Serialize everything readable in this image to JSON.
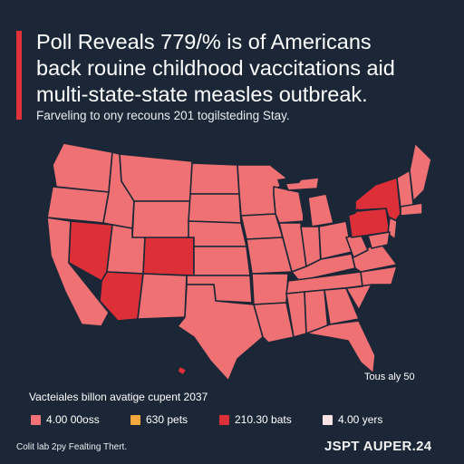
{
  "headline": {
    "line1": "Poll Reveals 779/% is of Americans",
    "line2": "back rouine childhood vaccitations aid",
    "line3": "multi-state-state measles outbreak."
  },
  "subhead": "Farveling to ony recouns 201 togilsteding Stay.",
  "map": {
    "note": "Tous aly 50",
    "colors": {
      "base": "#f07174",
      "highlight": "#dc2f38",
      "border": "#1b2736"
    },
    "highlighted_regions": [
      "Nevada",
      "Arizona",
      "Colorado",
      "New York",
      "Pennsylvania"
    ]
  },
  "legend": {
    "title": "Vacteiales billon avatige cupent 2037",
    "items": [
      {
        "label": "4.00 00oss",
        "color": "#f07174"
      },
      {
        "label": "630 pets",
        "color": "#f2a93b"
      },
      {
        "label": "210.30 bats",
        "color": "#dc2f38"
      },
      {
        "label": "4.00 yers",
        "color": "#fbe2e4"
      }
    ]
  },
  "footer": {
    "left": "Colit lab 2py Fealting Thert.",
    "right": "JSPT AUPER.24"
  }
}
